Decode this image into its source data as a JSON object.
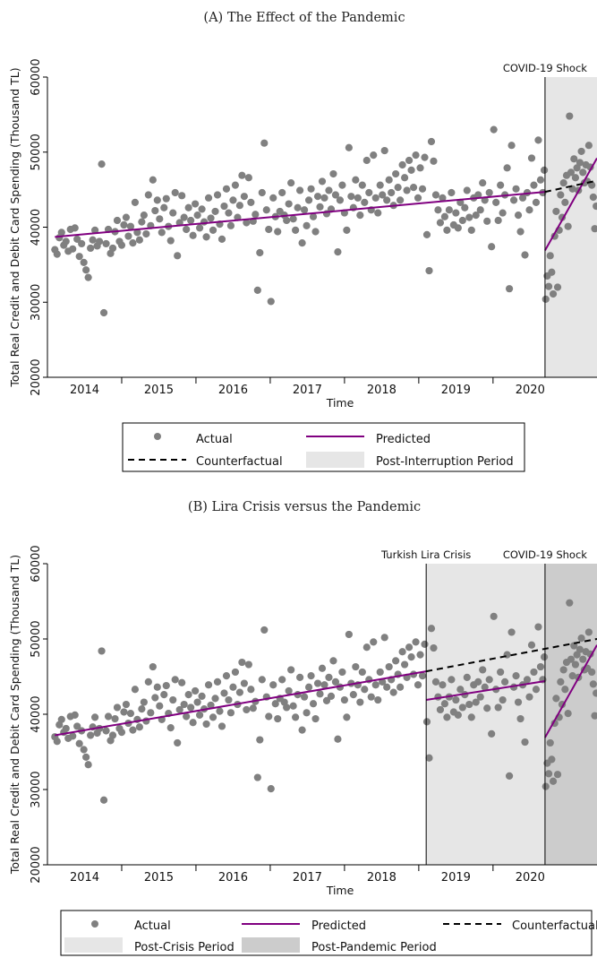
{
  "chart_data": [
    {
      "type": "scatter",
      "title": "(A) The Effect of the Pandemic",
      "xlabel": "Time",
      "ylabel": "Total Real Credit and Debit Card Spending (Thousand TL)",
      "x_ticks": [
        "2014",
        "2015",
        "2016",
        "2017",
        "2018",
        "2019",
        "2020"
      ],
      "y_ticks": [
        "20000",
        "30000",
        "40000",
        "50000",
        "60000"
      ],
      "xlim": [
        2013.5,
        2020.9
      ],
      "ylim": [
        20000,
        60000
      ],
      "shaded_periods": [
        {
          "name": "Post-Interruption Period",
          "start": 2020.2,
          "end": 2020.9,
          "color": "#e6e6e6",
          "annotation": "COVID-19 Shock"
        }
      ],
      "series": [
        {
          "name": "Predicted",
          "color": "#800080",
          "style": "solid",
          "segments": [
            {
              "x": [
                2013.6,
                2020.2
              ],
              "y": [
                38700,
                44700
              ]
            },
            {
              "x": [
                2020.2,
                2020.9
              ],
              "y": [
                36900,
                49200
              ]
            }
          ]
        },
        {
          "name": "Counterfactual",
          "color": "#000000",
          "style": "dashed",
          "segments": [
            {
              "x": [
                2020.2,
                2020.9
              ],
              "y": [
                44700,
                46200
              ]
            }
          ]
        }
      ],
      "legend": {
        "placement": "bottom",
        "items": [
          "Actual",
          "Predicted",
          "Counterfactual",
          "Post-Interruption Period"
        ]
      }
    },
    {
      "type": "scatter",
      "title": "(B) Lira Crisis versus the Pandemic",
      "xlabel": "Time",
      "ylabel": "Total Real Credit and Debit Card Spending (Thousand TL)",
      "x_ticks": [
        "2014",
        "2015",
        "2016",
        "2017",
        "2018",
        "2019",
        "2020"
      ],
      "y_ticks": [
        "20000",
        "30000",
        "40000",
        "50000",
        "60000"
      ],
      "xlim": [
        2013.5,
        2020.9
      ],
      "ylim": [
        20000,
        60000
      ],
      "shaded_periods": [
        {
          "name": "Post-Crisis Period",
          "start": 2018.6,
          "end": 2020.2,
          "color": "#e6e6e6",
          "annotation": "Turkish Lira Crisis"
        },
        {
          "name": "Post-Pandemic Period",
          "start": 2020.2,
          "end": 2020.9,
          "color": "#cccccc",
          "annotation": "COVID-19 Shock"
        }
      ],
      "series": [
        {
          "name": "Predicted",
          "color": "#800080",
          "style": "solid",
          "segments": [
            {
              "x": [
                2013.6,
                2018.6
              ],
              "y": [
                37200,
                45700
              ]
            },
            {
              "x": [
                2018.6,
                2020.2
              ],
              "y": [
                41900,
                44400
              ]
            },
            {
              "x": [
                2020.2,
                2020.9
              ],
              "y": [
                36900,
                49200
              ]
            }
          ]
        },
        {
          "name": "Counterfactual",
          "color": "#000000",
          "style": "dashed",
          "segments": [
            {
              "x": [
                2018.6,
                2020.9
              ],
              "y": [
                45700,
                50000
              ]
            }
          ]
        }
      ],
      "legend": {
        "placement": "bottom",
        "items": [
          "Actual",
          "Predicted",
          "Counterfactual",
          "Post-Crisis Period",
          "Post-Pandemic Period"
        ]
      }
    }
  ],
  "actual": {
    "name": "Actual",
    "color": "#808080",
    "points": [
      [
        2013.6,
        37000
      ],
      [
        2013.63,
        36400
      ],
      [
        2013.66,
        38600
      ],
      [
        2013.69,
        39300
      ],
      [
        2013.72,
        37600
      ],
      [
        2013.75,
        38100
      ],
      [
        2013.78,
        36800
      ],
      [
        2013.81,
        39700
      ],
      [
        2013.84,
        37100
      ],
      [
        2013.87,
        39900
      ],
      [
        2013.9,
        38400
      ],
      [
        2013.93,
        36100
      ],
      [
        2013.96,
        37800
      ],
      [
        2013.99,
        35300
      ],
      [
        2014.02,
        34300
      ],
      [
        2014.05,
        33300
      ],
      [
        2014.08,
        37200
      ],
      [
        2014.11,
        38300
      ],
      [
        2014.14,
        39600
      ],
      [
        2014.17,
        37500
      ],
      [
        2014.2,
        38100
      ],
      [
        2014.23,
        48400
      ],
      [
        2014.26,
        28600
      ],
      [
        2014.29,
        37800
      ],
      [
        2014.32,
        39700
      ],
      [
        2014.35,
        36500
      ],
      [
        2014.38,
        37200
      ],
      [
        2014.41,
        39400
      ],
      [
        2014.44,
        40900
      ],
      [
        2014.47,
        38100
      ],
      [
        2014.5,
        37600
      ],
      [
        2014.53,
        40300
      ],
      [
        2014.56,
        41300
      ],
      [
        2014.59,
        38800
      ],
      [
        2014.62,
        40100
      ],
      [
        2014.65,
        37900
      ],
      [
        2014.68,
        43300
      ],
      [
        2014.71,
        39300
      ],
      [
        2014.74,
        38300
      ],
      [
        2014.77,
        40700
      ],
      [
        2014.8,
        41600
      ],
      [
        2014.83,
        39100
      ],
      [
        2014.86,
        44300
      ],
      [
        2014.89,
        40200
      ],
      [
        2014.92,
        46300
      ],
      [
        2014.95,
        42200
      ],
      [
        2014.98,
        43600
      ],
      [
        2015.01,
        41100
      ],
      [
        2015.04,
        39300
      ],
      [
        2015.07,
        42600
      ],
      [
        2015.1,
        43800
      ],
      [
        2015.13,
        40100
      ],
      [
        2015.16,
        38200
      ],
      [
        2015.19,
        41900
      ],
      [
        2015.22,
        44600
      ],
      [
        2015.25,
        36200
      ],
      [
        2015.28,
        40600
      ],
      [
        2015.31,
        44200
      ],
      [
        2015.34,
        41300
      ],
      [
        2015.37,
        39700
      ],
      [
        2015.4,
        42600
      ],
      [
        2015.43,
        40900
      ],
      [
        2015.46,
        38900
      ],
      [
        2015.49,
        43100
      ],
      [
        2015.52,
        41600
      ],
      [
        2015.55,
        39900
      ],
      [
        2015.58,
        42400
      ],
      [
        2015.61,
        40700
      ],
      [
        2015.64,
        38700
      ],
      [
        2015.67,
        43900
      ],
      [
        2015.7,
        41200
      ],
      [
        2015.73,
        39600
      ],
      [
        2015.76,
        42100
      ],
      [
        2015.79,
        44300
      ],
      [
        2015.82,
        40400
      ],
      [
        2015.85,
        38400
      ],
      [
        2015.88,
        42800
      ],
      [
        2015.91,
        45100
      ],
      [
        2015.94,
        41900
      ],
      [
        2015.97,
        40200
      ],
      [
        2016.0,
        43600
      ],
      [
        2016.03,
        45600
      ],
      [
        2016.06,
        41300
      ],
      [
        2016.09,
        42900
      ],
      [
        2016.12,
        46900
      ],
      [
        2016.15,
        44100
      ],
      [
        2016.18,
        40600
      ],
      [
        2016.21,
        46600
      ],
      [
        2016.24,
        43300
      ],
      [
        2016.27,
        40800
      ],
      [
        2016.3,
        41700
      ],
      [
        2016.33,
        31600
      ],
      [
        2016.36,
        36600
      ],
      [
        2016.39,
        44600
      ],
      [
        2016.42,
        51200
      ],
      [
        2016.45,
        42300
      ],
      [
        2016.48,
        39700
      ],
      [
        2016.51,
        30100
      ],
      [
        2016.54,
        43900
      ],
      [
        2016.57,
        41400
      ],
      [
        2016.6,
        39400
      ],
      [
        2016.63,
        42100
      ],
      [
        2016.66,
        44600
      ],
      [
        2016.69,
        41600
      ],
      [
        2016.72,
        40900
      ],
      [
        2016.75,
        43100
      ],
      [
        2016.78,
        45900
      ],
      [
        2016.81,
        41100
      ],
      [
        2016.84,
        39600
      ],
      [
        2016.87,
        42600
      ],
      [
        2016.9,
        44900
      ],
      [
        2016.93,
        37900
      ],
      [
        2016.96,
        42300
      ],
      [
        2016.99,
        40200
      ],
      [
        2017.02,
        43600
      ],
      [
        2017.05,
        45100
      ],
      [
        2017.08,
        41400
      ],
      [
        2017.11,
        39400
      ],
      [
        2017.14,
        44100
      ],
      [
        2017.17,
        42700
      ],
      [
        2017.2,
        46100
      ],
      [
        2017.23,
        43900
      ],
      [
        2017.26,
        41800
      ],
      [
        2017.29,
        44900
      ],
      [
        2017.32,
        42400
      ],
      [
        2017.35,
        47100
      ],
      [
        2017.38,
        44300
      ],
      [
        2017.41,
        36700
      ],
      [
        2017.44,
        43600
      ],
      [
        2017.47,
        45600
      ],
      [
        2017.5,
        41900
      ],
      [
        2017.53,
        39600
      ],
      [
        2017.56,
        50600
      ],
      [
        2017.59,
        44100
      ],
      [
        2017.62,
        42600
      ],
      [
        2017.65,
        46300
      ],
      [
        2017.68,
        43900
      ],
      [
        2017.71,
        41600
      ],
      [
        2017.74,
        45600
      ],
      [
        2017.77,
        43300
      ],
      [
        2017.8,
        48900
      ],
      [
        2017.83,
        44600
      ],
      [
        2017.86,
        42300
      ],
      [
        2017.89,
        49600
      ],
      [
        2017.92,
        43900
      ],
      [
        2017.95,
        41900
      ],
      [
        2017.98,
        45600
      ],
      [
        2018.01,
        44300
      ],
      [
        2018.04,
        50200
      ],
      [
        2018.07,
        43600
      ],
      [
        2018.1,
        46300
      ],
      [
        2018.13,
        44600
      ],
      [
        2018.16,
        42900
      ],
      [
        2018.19,
        47100
      ],
      [
        2018.22,
        45300
      ],
      [
        2018.25,
        43600
      ],
      [
        2018.28,
        48300
      ],
      [
        2018.31,
        46600
      ],
      [
        2018.34,
        44900
      ],
      [
        2018.37,
        48900
      ],
      [
        2018.4,
        47600
      ],
      [
        2018.43,
        45300
      ],
      [
        2018.46,
        49600
      ],
      [
        2018.49,
        43900
      ],
      [
        2018.52,
        47900
      ],
      [
        2018.55,
        45100
      ],
      [
        2018.58,
        49300
      ],
      [
        2018.61,
        39000
      ],
      [
        2018.64,
        34200
      ],
      [
        2018.67,
        51400
      ],
      [
        2018.7,
        48800
      ],
      [
        2018.73,
        44300
      ],
      [
        2018.76,
        42300
      ],
      [
        2018.79,
        40600
      ],
      [
        2018.82,
        43900
      ],
      [
        2018.85,
        41400
      ],
      [
        2018.88,
        39600
      ],
      [
        2018.91,
        42300
      ],
      [
        2018.94,
        44600
      ],
      [
        2018.97,
        40300
      ],
      [
        2019.0,
        41900
      ],
      [
        2019.03,
        39900
      ],
      [
        2019.06,
        43300
      ],
      [
        2019.09,
        40900
      ],
      [
        2019.12,
        42600
      ],
      [
        2019.15,
        44900
      ],
      [
        2019.18,
        41300
      ],
      [
        2019.21,
        39600
      ],
      [
        2019.24,
        43900
      ],
      [
        2019.27,
        41600
      ],
      [
        2019.3,
        44300
      ],
      [
        2019.33,
        42300
      ],
      [
        2019.36,
        45900
      ],
      [
        2019.39,
        43600
      ],
      [
        2019.42,
        40800
      ],
      [
        2019.45,
        44600
      ],
      [
        2019.48,
        37400
      ],
      [
        2019.51,
        53000
      ],
      [
        2019.54,
        43300
      ],
      [
        2019.57,
        40900
      ],
      [
        2019.6,
        45600
      ],
      [
        2019.63,
        41900
      ],
      [
        2019.66,
        44300
      ],
      [
        2019.69,
        47900
      ],
      [
        2019.72,
        31800
      ],
      [
        2019.75,
        50900
      ],
      [
        2019.78,
        43600
      ],
      [
        2019.81,
        45100
      ],
      [
        2019.84,
        41600
      ],
      [
        2019.87,
        39400
      ],
      [
        2019.9,
        43900
      ],
      [
        2019.93,
        36300
      ],
      [
        2019.96,
        44600
      ],
      [
        2019.99,
        42300
      ],
      [
        2020.02,
        49200
      ],
      [
        2020.05,
        45600
      ],
      [
        2020.08,
        43300
      ],
      [
        2020.11,
        51600
      ],
      [
        2020.14,
        46300
      ],
      [
        2020.17,
        44600
      ],
      [
        2020.19,
        47600
      ],
      [
        2020.21,
        30400
      ],
      [
        2020.23,
        33500
      ],
      [
        2020.25,
        32100
      ],
      [
        2020.27,
        36200
      ],
      [
        2020.29,
        34000
      ],
      [
        2020.31,
        31100
      ],
      [
        2020.33,
        38800
      ],
      [
        2020.35,
        42100
      ],
      [
        2020.37,
        32000
      ],
      [
        2020.39,
        39600
      ],
      [
        2020.41,
        44300
      ],
      [
        2020.43,
        41300
      ],
      [
        2020.45,
        45900
      ],
      [
        2020.47,
        43300
      ],
      [
        2020.49,
        46900
      ],
      [
        2020.51,
        40100
      ],
      [
        2020.53,
        54800
      ],
      [
        2020.55,
        47300
      ],
      [
        2020.57,
        45100
      ],
      [
        2020.59,
        49100
      ],
      [
        2020.61,
        46600
      ],
      [
        2020.63,
        47900
      ],
      [
        2020.65,
        44900
      ],
      [
        2020.67,
        48600
      ],
      [
        2020.69,
        50100
      ],
      [
        2020.71,
        47300
      ],
      [
        2020.73,
        45900
      ],
      [
        2020.75,
        48300
      ],
      [
        2020.77,
        46100
      ],
      [
        2020.79,
        50900
      ],
      [
        2020.81,
        48000
      ],
      [
        2020.83,
        45600
      ],
      [
        2020.85,
        44000
      ],
      [
        2020.87,
        39800
      ],
      [
        2020.89,
        42800
      ]
    ]
  }
}
